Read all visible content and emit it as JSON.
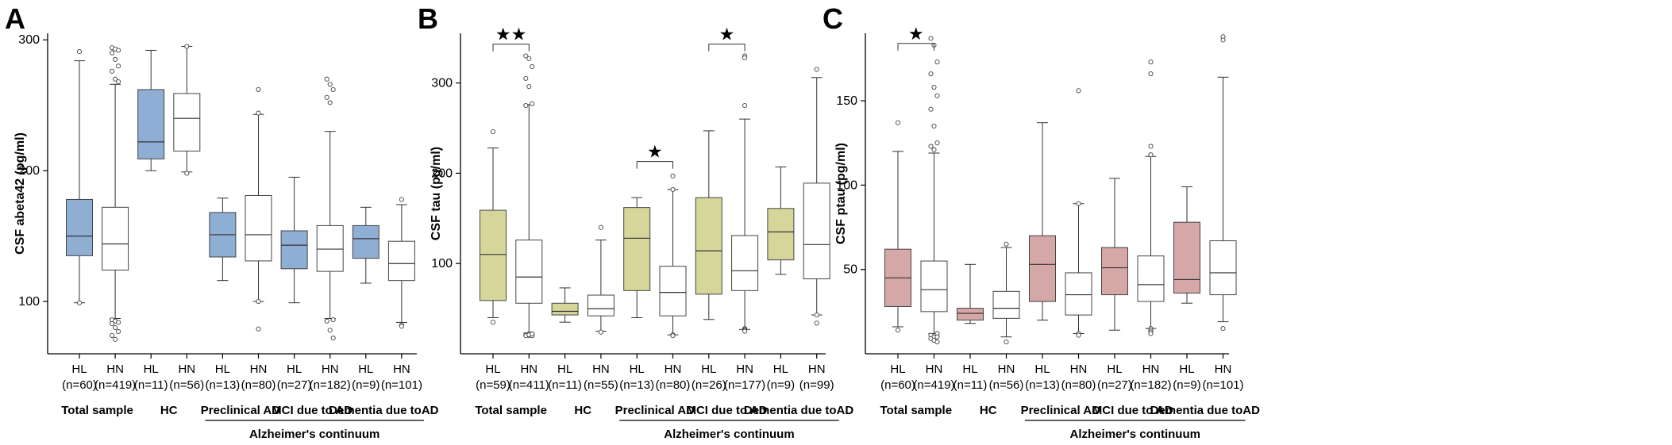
{
  "chart_data": [
    {
      "type": "box",
      "panel": "A",
      "ylabel": "CSF abeta42 (pg/ml)",
      "ylim": [
        60,
        305
      ],
      "yticks": [
        100,
        200,
        300
      ],
      "box_color": "#8eaed4",
      "categories": [
        {
          "label": "HL",
          "n": "(n=60)",
          "filled": true,
          "whislo": 99,
          "q1": 135,
          "med": 150,
          "q3": 178,
          "whishi": 284,
          "fliers": [
            291,
            99
          ]
        },
        {
          "label": "HN",
          "n": "(n=419)",
          "filled": false,
          "whislo": 87,
          "q1": 124,
          "med": 144,
          "q3": 172,
          "whishi": 266,
          "fliers": [
            294,
            293,
            292,
            290,
            285,
            280,
            276,
            270,
            268,
            86,
            85,
            84,
            83,
            80,
            77,
            74,
            71
          ]
        },
        {
          "label": "HL",
          "n": "(n=11)",
          "filled": true,
          "whislo": 200,
          "q1": 209,
          "med": 222,
          "q3": 262,
          "whishi": 292,
          "fliers": []
        },
        {
          "label": "HN",
          "n": "(n=56)",
          "filled": false,
          "whislo": 199,
          "q1": 215,
          "med": 240,
          "q3": 259,
          "whishi": 295,
          "fliers": [
            295,
            198
          ]
        },
        {
          "label": "HL",
          "n": "(n=13)",
          "filled": true,
          "whislo": 116,
          "q1": 134,
          "med": 151,
          "q3": 168,
          "whishi": 179,
          "fliers": []
        },
        {
          "label": "HN",
          "n": "(n=80)",
          "filled": false,
          "whislo": 100,
          "q1": 131,
          "med": 151,
          "q3": 181,
          "whishi": 243,
          "fliers": [
            262,
            244,
            100,
            79
          ]
        },
        {
          "label": "HL",
          "n": "(n=27)",
          "filled": true,
          "whislo": 99,
          "q1": 125,
          "med": 143,
          "q3": 154,
          "whishi": 195,
          "fliers": []
        },
        {
          "label": "HN",
          "n": "(n=182)",
          "filled": false,
          "whislo": 87,
          "q1": 123,
          "med": 140,
          "q3": 158,
          "whishi": 230,
          "fliers": [
            270,
            266,
            262,
            256,
            252,
            86,
            85,
            78,
            72
          ]
        },
        {
          "label": "HL",
          "n": "(n=9)",
          "filled": true,
          "whislo": 114,
          "q1": 133,
          "med": 148,
          "q3": 158,
          "whishi": 172,
          "fliers": []
        },
        {
          "label": "HN",
          "n": "(n=101)",
          "filled": false,
          "whislo": 84,
          "q1": 116,
          "med": 129,
          "q3": 146,
          "whishi": 174,
          "fliers": [
            178,
            82,
            81
          ]
        }
      ],
      "significance": [],
      "groups": [
        "Total sample",
        "HC",
        "Preclinical AD",
        "MCI due to AD",
        "Dementia due toAD"
      ],
      "continuum_label": "Alzheimer's continuum"
    },
    {
      "type": "box",
      "panel": "B",
      "ylabel": "CSF tau (pg/ml)",
      "ylim": [
        0,
        355
      ],
      "yticks": [
        100,
        200,
        300
      ],
      "box_color": "#d6d69b",
      "categories": [
        {
          "label": "HL",
          "n": "(n=59)",
          "filled": true,
          "whislo": 40,
          "q1": 59,
          "med": 110,
          "q3": 159,
          "whishi": 228,
          "fliers": [
            246,
            35
          ]
        },
        {
          "label": "HN",
          "n": "(n=411)",
          "filled": false,
          "whislo": 23,
          "q1": 56,
          "med": 85,
          "q3": 126,
          "whishi": 276,
          "fliers": [
            330,
            327,
            318,
            305,
            296,
            277,
            275,
            22,
            21,
            21,
            20,
            20,
            20,
            21,
            22
          ]
        },
        {
          "label": "HL",
          "n": "(n=11)",
          "filled": true,
          "whislo": 35,
          "q1": 43,
          "med": 47,
          "q3": 56,
          "whishi": 73,
          "fliers": []
        },
        {
          "label": "HN",
          "n": "(n=55)",
          "filled": false,
          "whislo": 25,
          "q1": 42,
          "med": 50,
          "q3": 65,
          "whishi": 126,
          "fliers": [
            140,
            24
          ]
        },
        {
          "label": "HL",
          "n": "(n=13)",
          "filled": true,
          "whislo": 40,
          "q1": 70,
          "med": 128,
          "q3": 162,
          "whishi": 173,
          "fliers": []
        },
        {
          "label": "HN",
          "n": "(n=80)",
          "filled": false,
          "whislo": 21,
          "q1": 42,
          "med": 68,
          "q3": 97,
          "whishi": 182,
          "fliers": [
            197,
            182,
            21,
            20
          ]
        },
        {
          "label": "HL",
          "n": "(n=26)",
          "filled": true,
          "whislo": 38,
          "q1": 66,
          "med": 114,
          "q3": 173,
          "whishi": 247,
          "fliers": []
        },
        {
          "label": "HN",
          "n": "(n=177)",
          "filled": false,
          "whislo": 27,
          "q1": 70,
          "med": 92,
          "q3": 131,
          "whishi": 260,
          "fliers": [
            330,
            328,
            275,
            28,
            27,
            26,
            25
          ]
        },
        {
          "label": "HL",
          "n": "(n=9)",
          "filled": true,
          "whislo": 88,
          "q1": 104,
          "med": 135,
          "q3": 161,
          "whishi": 207,
          "fliers": []
        },
        {
          "label": "HN",
          "n": "(n=99)",
          "filled": false,
          "whislo": 43,
          "q1": 83,
          "med": 121,
          "q3": 189,
          "whishi": 306,
          "fliers": [
            315,
            43,
            34
          ]
        }
      ],
      "significance": [
        {
          "from": 0,
          "to": 1,
          "label": "★★",
          "y": 343
        },
        {
          "from": 4,
          "to": 5,
          "label": "★",
          "y": 213
        },
        {
          "from": 6,
          "to": 7,
          "label": "★",
          "y": 343
        }
      ],
      "groups": [
        "Total sample",
        "HC",
        "Preclinical AD",
        "MCI due to AD",
        "Dementia due toAD"
      ],
      "continuum_label": "Alzheimer's continuum"
    },
    {
      "type": "box",
      "panel": "C",
      "ylabel": "CSF ptau (pg/ml)",
      "ylim": [
        0,
        190
      ],
      "yticks": [
        50,
        100,
        150
      ],
      "box_color": "#d6a7a7",
      "categories": [
        {
          "label": "HL",
          "n": "(n=60)",
          "filled": true,
          "whislo": 16,
          "q1": 28,
          "med": 45,
          "q3": 62,
          "whishi": 120,
          "fliers": [
            137,
            14
          ]
        },
        {
          "label": "HN",
          "n": "(n=419)",
          "filled": false,
          "whislo": 12,
          "q1": 25,
          "med": 38,
          "q3": 55,
          "whishi": 119,
          "fliers": [
            187,
            183,
            173,
            166,
            158,
            153,
            145,
            135,
            125,
            123,
            121,
            12,
            11,
            10,
            10,
            9,
            8,
            7
          ]
        },
        {
          "label": "HL",
          "n": "(n=11)",
          "filled": true,
          "whislo": 18,
          "q1": 20,
          "med": 24,
          "q3": 27,
          "whishi": 53,
          "fliers": []
        },
        {
          "label": "HN",
          "n": "(n=56)",
          "filled": false,
          "whislo": 10,
          "q1": 21,
          "med": 27,
          "q3": 37,
          "whishi": 63,
          "fliers": [
            65,
            7
          ]
        },
        {
          "label": "HL",
          "n": "(n=13)",
          "filled": true,
          "whislo": 20,
          "q1": 31,
          "med": 53,
          "q3": 70,
          "whishi": 137,
          "fliers": []
        },
        {
          "label": "HN",
          "n": "(n=80)",
          "filled": false,
          "whislo": 12,
          "q1": 23,
          "med": 35,
          "q3": 48,
          "whishi": 89,
          "fliers": [
            156,
            89,
            12,
            11
          ]
        },
        {
          "label": "HL",
          "n": "(n=27)",
          "filled": true,
          "whislo": 14,
          "q1": 35,
          "med": 51,
          "q3": 63,
          "whishi": 104,
          "fliers": []
        },
        {
          "label": "HN",
          "n": "(n=182)",
          "filled": false,
          "whislo": 15,
          "q1": 31,
          "med": 41,
          "q3": 58,
          "whishi": 117,
          "fliers": [
            173,
            166,
            123,
            118,
            15,
            14,
            13,
            12
          ]
        },
        {
          "label": "HL",
          "n": "(n=9)",
          "filled": true,
          "whislo": 30,
          "q1": 36,
          "med": 44,
          "q3": 78,
          "whishi": 99,
          "fliers": []
        },
        {
          "label": "HN",
          "n": "(n=101)",
          "filled": false,
          "whislo": 19,
          "q1": 35,
          "med": 48,
          "q3": 67,
          "whishi": 164,
          "fliers": [
            188,
            186,
            15
          ]
        }
      ],
      "significance": [
        {
          "from": 0,
          "to": 1,
          "label": "★",
          "y": 184
        }
      ],
      "groups": [
        "Total sample",
        "HC",
        "Preclinical AD",
        "MCI due to AD",
        "Dementia due toAD"
      ],
      "continuum_label": "Alzheimer's continuum"
    }
  ]
}
